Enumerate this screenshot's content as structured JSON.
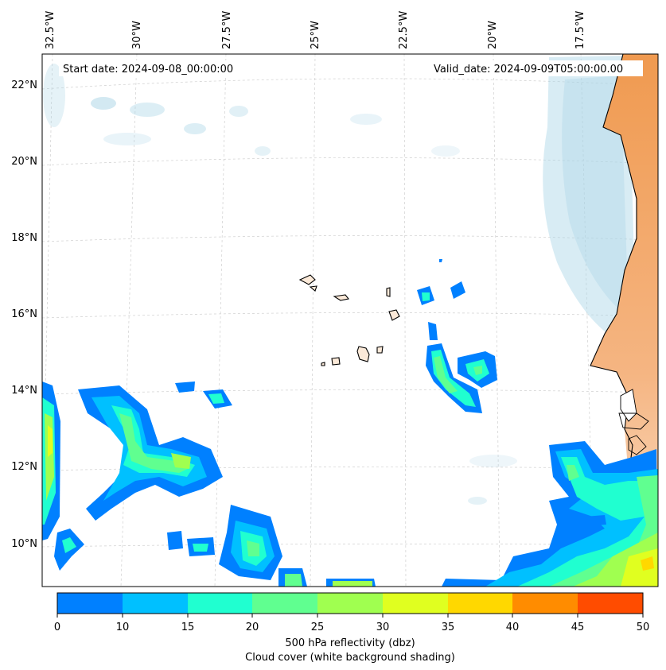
{
  "map": {
    "start_date": "Start date: 2024-09-08_00:00:00",
    "valid_date": "Valid_date: 2024-09-09T05:00:00.00",
    "lon_labels": [
      "32.5°W",
      "30°W",
      "27.5°W",
      "25°W",
      "22.5°W",
      "20°W",
      "17.5°W"
    ],
    "lat_labels": [
      "22°N",
      "20°N",
      "18°N",
      "16°N",
      "14°N",
      "12°N",
      "10°N"
    ],
    "colorbar": {
      "ticks": [
        "0",
        "10",
        "15",
        "20",
        "25",
        "30",
        "35",
        "40",
        "45",
        "50"
      ],
      "colors": [
        "#0080ff",
        "#00c0ff",
        "#20ffd0",
        "#60ff90",
        "#a0ff50",
        "#e0ff20",
        "#ffd800",
        "#ff8c00",
        "#ff4c00"
      ],
      "label_1": "500 hPa reflectivity (dbz)",
      "label_2": "Cloud cover (white background shading)"
    },
    "colors": {
      "land": "#f5a05a",
      "cloud": "#a8d4e6",
      "grid": "#c8c8c8"
    }
  }
}
